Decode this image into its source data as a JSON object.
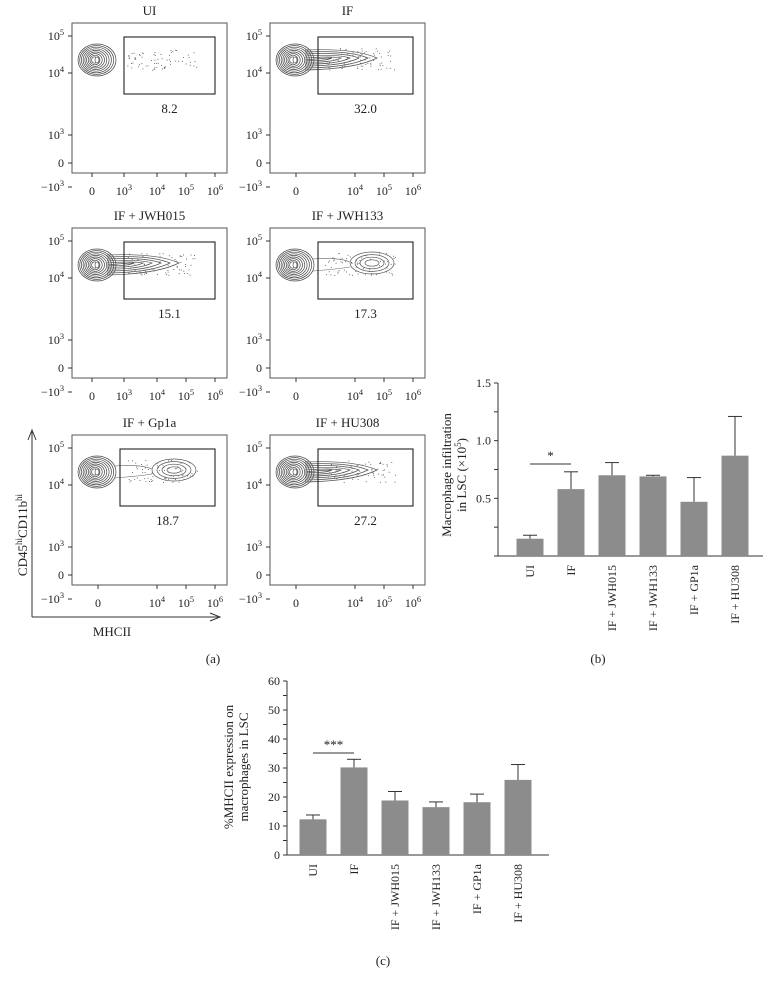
{
  "figure": {
    "panel_labels": {
      "a": "(a)",
      "b": "(b)",
      "c": "(c)"
    }
  },
  "chart_data": [
    {
      "type": "scatter",
      "subtype": "flow-cytometry-contour",
      "panel": "(a)",
      "xlabel": "MHCII",
      "ylabel": "CD45hiCD11bhi",
      "ylabel_parts": {
        "base1": "CD45",
        "sup1": "hi",
        "base2": "CD11b",
        "sup2": "hi"
      },
      "y_ticks": [
        "10^5",
        "10^4",
        "10^3",
        "0",
        "-10^3"
      ],
      "plots": [
        {
          "title": "UI",
          "gate_value": "8.2",
          "x_ticks": [
            "0",
            "10^3",
            "10^4",
            "10^5",
            "10^6"
          ]
        },
        {
          "title": "IF",
          "gate_value": "32.0",
          "x_ticks": [
            "0",
            "10^4",
            "10^5",
            "10^6"
          ]
        },
        {
          "title": "IF + JWH015",
          "gate_value": "15.1",
          "x_ticks": [
            "0",
            "10^3",
            "10^4",
            "10^5",
            "10^6"
          ]
        },
        {
          "title": "IF + JWH133",
          "gate_value": "17.3",
          "x_ticks": [
            "0",
            "10^4",
            "10^5",
            "10^6"
          ]
        },
        {
          "title": "IF + Gp1a",
          "gate_value": "18.7",
          "x_ticks": [
            "0",
            "10^4",
            "10^5",
            "10^6"
          ]
        },
        {
          "title": "IF + HU308",
          "gate_value": "27.2",
          "x_ticks": [
            "0",
            "10^4",
            "10^5",
            "10^6"
          ]
        }
      ]
    },
    {
      "type": "bar",
      "panel": "(b)",
      "categories": [
        "UI",
        "IF",
        "IF + JWH015",
        "IF + JWH133",
        "IF + GP1a",
        "IF + HU308"
      ],
      "values": [
        0.15,
        0.58,
        0.7,
        0.69,
        0.47,
        0.87
      ],
      "errors": [
        0.03,
        0.15,
        0.11,
        0.01,
        0.21,
        0.34
      ],
      "ylabel": "Macrophage infiltration in LSC (×10^5)",
      "ylabel_lines": [
        "Macrophage infiltration",
        "in LSC (×10",
        "5",
        ")"
      ],
      "ylim": [
        0,
        1.5
      ],
      "y_ticks": [
        "0.5",
        "1.0",
        "1.5"
      ],
      "significance": [
        {
          "from": "UI",
          "to": "IF",
          "label": "*"
        }
      ],
      "bar_color": "#8c8c8c"
    },
    {
      "type": "bar",
      "panel": "(c)",
      "categories": [
        "UI",
        "IF",
        "IF + JWH015",
        "IF + JWH133",
        "IF + GP1a",
        "IF + HU308"
      ],
      "values": [
        12.3,
        30.2,
        18.8,
        16.5,
        18.2,
        25.9
      ],
      "errors": [
        1.5,
        2.8,
        3.1,
        1.8,
        2.8,
        5.3
      ],
      "ylabel": "%MHCII expression on macrophages in LSC",
      "ylabel_lines": [
        "%MHCII expression on",
        "macrophages in LSC"
      ],
      "ylim": [
        0,
        60
      ],
      "y_ticks": [
        "0",
        "10",
        "20",
        "30",
        "40",
        "50",
        "60"
      ],
      "significance": [
        {
          "from": "UI",
          "to": "IF",
          "label": "***"
        }
      ],
      "bar_color": "#8c8c8c"
    }
  ]
}
